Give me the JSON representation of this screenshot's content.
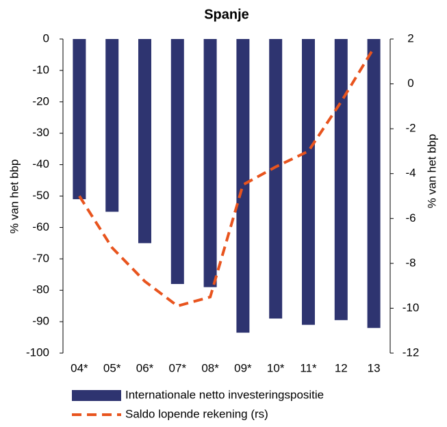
{
  "chart_data": {
    "type": "bar",
    "title": "Spanje",
    "categories": [
      "04*",
      "05*",
      "06*",
      "07*",
      "08*",
      "09*",
      "10*",
      "11*",
      "12",
      "13"
    ],
    "series": [
      {
        "name": "Internationale netto investeringspositie",
        "type": "bar",
        "color": "#2e3470",
        "values": [
          -51,
          -55,
          -65,
          -78,
          -79,
          -93.5,
          -89,
          -91,
          -89.5,
          -92
        ]
      },
      {
        "name": "Saldo lopende rekening (rs)",
        "type": "line",
        "axis": "y2",
        "color": "#e8541e",
        "dashed": true,
        "values": [
          -5.0,
          -7.3,
          -8.8,
          -9.9,
          -9.5,
          -4.5,
          -3.7,
          -3.0,
          -0.8,
          1.6
        ]
      }
    ],
    "ylabel": "% van het bbp",
    "y2label": "% van het bbp",
    "ylim": [
      0,
      -100
    ],
    "yticks": [
      0,
      -10,
      -20,
      -30,
      -40,
      -50,
      -60,
      -70,
      -80,
      -90,
      -100
    ],
    "y2lim": [
      2,
      -12
    ],
    "y2ticks": [
      2,
      0,
      -2,
      -4,
      -6,
      -8,
      -10,
      -12
    ],
    "grid": false,
    "legend": "bottom"
  }
}
